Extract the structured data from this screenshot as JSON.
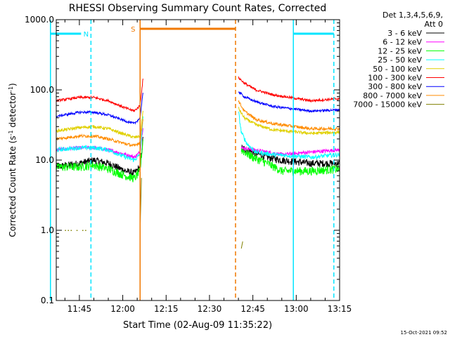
{
  "chart_data": {
    "type": "line",
    "title": "RHESSI Observing Summary Count Rates, Corrected",
    "xlabel": "Start Time (02-Aug-09 11:35:22)",
    "ylabel_main": "Corrected Count Rate (s",
    "ylabel_sup1": "-1",
    "ylabel_mid": " detector",
    "ylabel_sup2": "-1",
    "ylabel_end": ")",
    "y_scale": "log",
    "ylim": [
      0.1,
      1000
    ],
    "xlim_minutes_after_1130": [
      7,
      105
    ],
    "y_ticks": [
      {
        "value": 0.1,
        "label": "0.1"
      },
      {
        "value": 1,
        "label": "1.0"
      },
      {
        "value": 10,
        "label": "10.0"
      },
      {
        "value": 100,
        "label": "100.0"
      },
      {
        "value": 1000,
        "label": "1000.0"
      }
    ],
    "x_ticks": [
      {
        "label": "11:45"
      },
      {
        "label": "12:00"
      },
      {
        "label": "12:15"
      },
      {
        "label": "12:30"
      },
      {
        "label": "12:45"
      },
      {
        "label": "13:00"
      },
      {
        "label": "13:15"
      }
    ],
    "legend_header": [
      "Det 1,3,4,5,6,9,",
      "Att 0"
    ],
    "legend_placement": "right",
    "footer_date": "15-Oct-2021 09:52",
    "flags": [
      {
        "label": "N",
        "color": "#00e5ff",
        "style": "solid-bar",
        "start": "11:35",
        "end": "11:49"
      },
      {
        "label": "S",
        "color": "#f07800",
        "style": "solid-bar",
        "start": "12:06",
        "end": "12:39"
      },
      {
        "label": "",
        "color": "#00e5ff",
        "style": "solid-bar",
        "start": "12:59",
        "end": "13:13"
      }
    ],
    "event_lines": [
      {
        "color": "#00e5ff",
        "style": "solid",
        "time": "11:35"
      },
      {
        "color": "#00e5ff",
        "style": "dashed",
        "time": "11:49"
      },
      {
        "color": "#f07800",
        "style": "solid",
        "time": "12:06"
      },
      {
        "color": "#f07800",
        "style": "dashed",
        "time": "12:39"
      },
      {
        "color": "#00e5ff",
        "style": "solid",
        "time": "12:59"
      },
      {
        "color": "#00e5ff",
        "style": "dashed",
        "time": "13:13"
      }
    ],
    "series": [
      {
        "name": "3 - 6 keV",
        "color": "#000000",
        "noise": 0.12,
        "points": [
          [
            7,
            8
          ],
          [
            15,
            9
          ],
          [
            20,
            10
          ],
          [
            25,
            9
          ],
          [
            31,
            7
          ],
          [
            34,
            6.5
          ],
          [
            36,
            8
          ],
          [
            37,
            20
          ]
        ],
        "points2": [
          [
            71,
            15
          ],
          [
            75,
            13
          ],
          [
            80,
            11
          ],
          [
            85,
            10
          ],
          [
            95,
            9
          ],
          [
            105,
            9
          ]
        ]
      },
      {
        "name": "6 - 12 keV",
        "color": "#ff00ff",
        "noise": 0.06,
        "points": [
          [
            7,
            14
          ],
          [
            15,
            15
          ],
          [
            20,
            15
          ],
          [
            25,
            14
          ],
          [
            31,
            12
          ],
          [
            34,
            11
          ],
          [
            36,
            13
          ],
          [
            37,
            30
          ]
        ],
        "points2": [
          [
            71,
            15
          ],
          [
            75,
            14
          ],
          [
            80,
            13
          ],
          [
            85,
            12
          ],
          [
            95,
            13
          ],
          [
            105,
            14
          ]
        ]
      },
      {
        "name": "12 - 25 keV",
        "color": "#00ff00",
        "noise": 0.14,
        "points": [
          [
            7,
            8
          ],
          [
            15,
            8
          ],
          [
            20,
            8.5
          ],
          [
            25,
            7.5
          ],
          [
            31,
            6
          ],
          [
            34,
            5.5
          ],
          [
            36,
            7
          ],
          [
            37,
            20
          ]
        ],
        "points2": [
          [
            71,
            14
          ],
          [
            75,
            11
          ],
          [
            80,
            9
          ],
          [
            85,
            7
          ],
          [
            95,
            7
          ],
          [
            105,
            7.5
          ]
        ]
      },
      {
        "name": "25 - 50 keV",
        "color": "#00ffff",
        "noise": 0.07,
        "points": [
          [
            7,
            14
          ],
          [
            15,
            15
          ],
          [
            20,
            15
          ],
          [
            25,
            14
          ],
          [
            31,
            11
          ],
          [
            34,
            10
          ],
          [
            36,
            12
          ],
          [
            37,
            40
          ]
        ],
        "points2": [
          [
            70,
            50
          ],
          [
            71,
            25
          ],
          [
            73,
            17
          ],
          [
            76,
            13
          ],
          [
            82,
            12
          ],
          [
            95,
            11
          ],
          [
            105,
            12
          ]
        ]
      },
      {
        "name": "50 - 100 keV",
        "color": "#e0d000",
        "noise": 0.05,
        "points": [
          [
            7,
            26
          ],
          [
            15,
            29
          ],
          [
            20,
            30
          ],
          [
            25,
            28
          ],
          [
            31,
            23
          ],
          [
            34,
            21
          ],
          [
            36,
            22
          ],
          [
            37,
            50
          ]
        ],
        "points2": [
          [
            70,
            55
          ],
          [
            72,
            40
          ],
          [
            76,
            32
          ],
          [
            82,
            27
          ],
          [
            95,
            24
          ],
          [
            105,
            25
          ]
        ]
      },
      {
        "name": "100 - 300 keV",
        "color": "#ff0000",
        "noise": 0.04,
        "points": [
          [
            7,
            70
          ],
          [
            15,
            78
          ],
          [
            20,
            78
          ],
          [
            25,
            70
          ],
          [
            31,
            55
          ],
          [
            34,
            50
          ],
          [
            36,
            60
          ],
          [
            37,
            145
          ]
        ],
        "points2": [
          [
            70,
            150
          ],
          [
            72,
            125
          ],
          [
            76,
            100
          ],
          [
            82,
            85
          ],
          [
            95,
            70
          ],
          [
            105,
            75
          ]
        ]
      },
      {
        "name": "300 - 800 keV",
        "color": "#0000ff",
        "noise": 0.04,
        "points": [
          [
            7,
            42
          ],
          [
            15,
            48
          ],
          [
            20,
            48
          ],
          [
            25,
            44
          ],
          [
            31,
            36
          ],
          [
            34,
            33
          ],
          [
            36,
            40
          ],
          [
            37,
            90
          ]
        ],
        "points2": [
          [
            70,
            95
          ],
          [
            72,
            80
          ],
          [
            76,
            68
          ],
          [
            82,
            58
          ],
          [
            95,
            50
          ],
          [
            105,
            52
          ]
        ]
      },
      {
        "name": "800 - 7000 keV",
        "color": "#ff8c00",
        "noise": 0.05,
        "points": [
          [
            7,
            20
          ],
          [
            15,
            22
          ],
          [
            20,
            22
          ],
          [
            25,
            20
          ],
          [
            31,
            17
          ],
          [
            34,
            16
          ],
          [
            36,
            18
          ],
          [
            37,
            40
          ]
        ],
        "points2": [
          [
            70,
            70
          ],
          [
            72,
            50
          ],
          [
            76,
            38
          ],
          [
            82,
            33
          ],
          [
            95,
            28
          ],
          [
            105,
            28
          ]
        ]
      },
      {
        "name": "7000 - 15000 keV",
        "color": "#808000",
        "noise": 0.0,
        "dots": [
          [
            10,
            1
          ],
          [
            11,
            1
          ],
          [
            12,
            1
          ],
          [
            14,
            1
          ],
          [
            16,
            1
          ],
          [
            17,
            1
          ]
        ],
        "points": [
          [
            36,
            1.0
          ],
          [
            36.5,
            6.0
          ]
        ],
        "points2": [
          [
            71,
            0.55
          ],
          [
            71.5,
            0.7
          ]
        ]
      }
    ]
  }
}
